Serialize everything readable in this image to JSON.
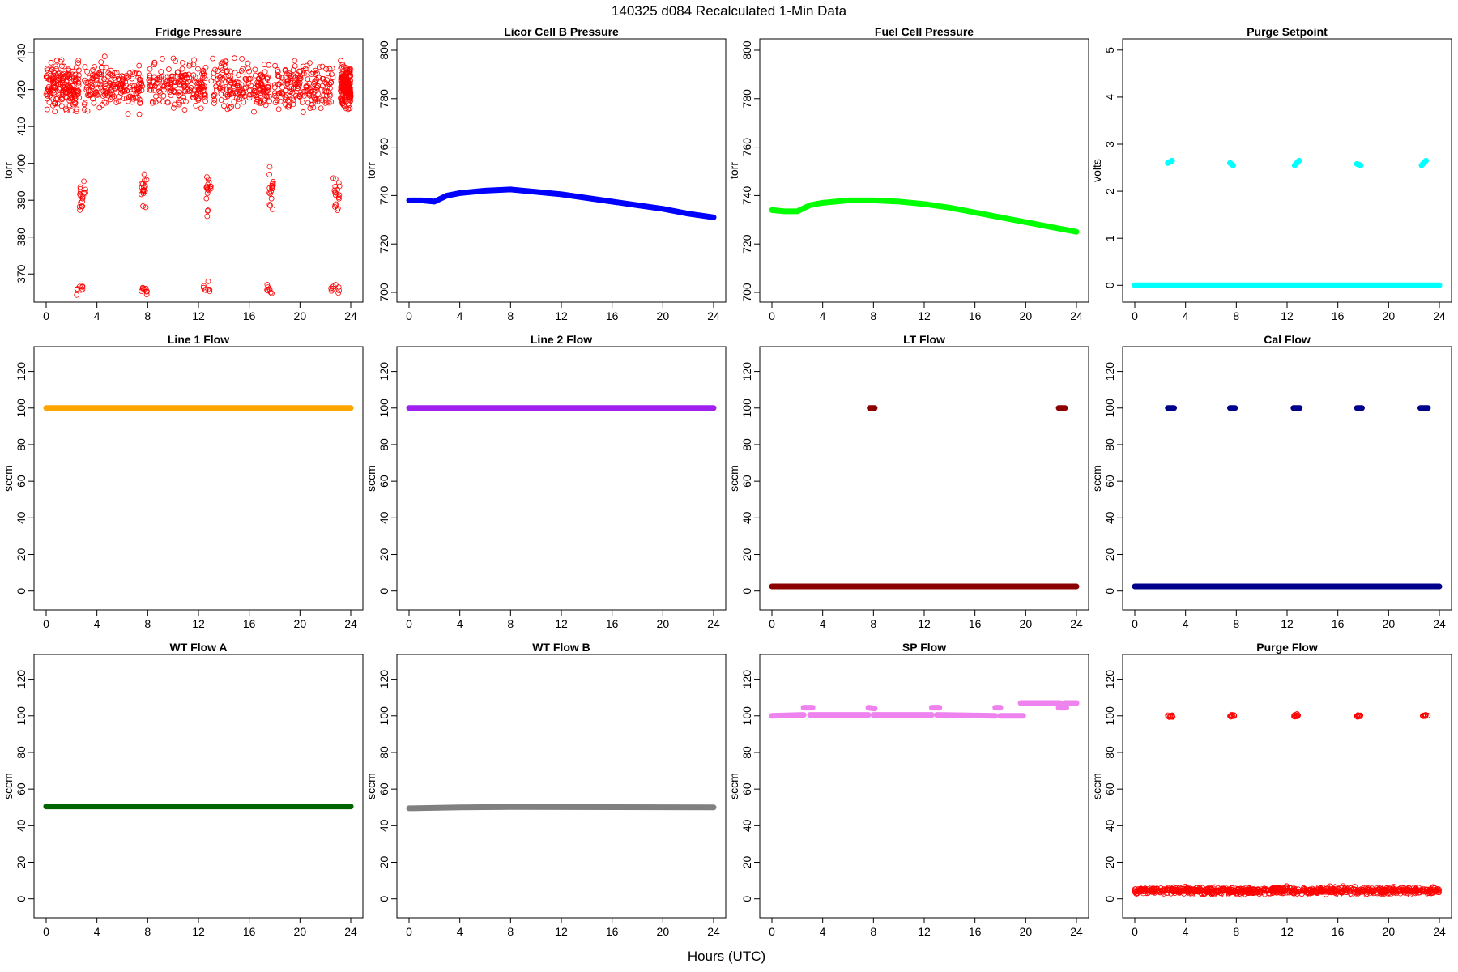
{
  "figure": {
    "title": "140325   d084   Recalculated 1-Min Data",
    "xlabel": "Hours (UTC)"
  },
  "chart_data": [
    {
      "type": "scatter",
      "title": "Fridge Pressure",
      "ylabel": "torr",
      "color": "#ff0000",
      "marker": "open-circle",
      "xlim": [
        0,
        24
      ],
      "ylim": [
        365,
        432
      ],
      "xticks": [
        0,
        4,
        8,
        12,
        16,
        20,
        24
      ],
      "yticks": [
        370,
        380,
        390,
        400,
        410,
        420,
        430
      ],
      "series": [
        {
          "kind": "noise",
          "x_ranges": [
            [
              0,
              2.6
            ],
            [
              3.0,
              7.6
            ],
            [
              8.1,
              12.6
            ],
            [
              13.0,
              17.6
            ],
            [
              18.0,
              22.6
            ],
            [
              23.2,
              24
            ]
          ],
          "center": 421,
          "spread": 5,
          "count": 1100
        },
        {
          "kind": "cluster",
          "x_ranges": [
            [
              2.6,
              3.1
            ],
            [
              7.5,
              8.0
            ],
            [
              12.6,
              13.0
            ],
            [
              17.5,
              17.9
            ],
            [
              22.6,
              23.2
            ]
          ],
          "center": 392,
          "spread": 4,
          "count": 90
        },
        {
          "kind": "cluster",
          "x_ranges": [
            [
              2.4,
              2.9
            ],
            [
              7.5,
              8.0
            ],
            [
              12.4,
              12.9
            ],
            [
              17.4,
              17.8
            ],
            [
              22.4,
              23.1
            ]
          ],
          "center": 366,
          "spread": 1.2,
          "count": 40
        }
      ]
    },
    {
      "type": "line",
      "title": "Licor Cell B Pressure",
      "ylabel": "torr",
      "color": "#0000ff",
      "marker": "thick-line",
      "xlim": [
        0,
        24
      ],
      "ylim": [
        700,
        802
      ],
      "xticks": [
        0,
        4,
        8,
        12,
        16,
        20,
        24
      ],
      "yticks": [
        700,
        720,
        740,
        760,
        780,
        800
      ],
      "series": [
        {
          "kind": "line",
          "x": [
            0,
            1,
            2,
            3,
            4,
            6,
            8,
            10,
            12,
            14,
            16,
            18,
            20,
            22,
            24
          ],
          "y": [
            738,
            738,
            737.5,
            740,
            741,
            742,
            742.5,
            741.5,
            740.5,
            739,
            737.5,
            736,
            734.5,
            732.5,
            731
          ]
        }
      ]
    },
    {
      "type": "line",
      "title": "Fuel Cell Pressure",
      "ylabel": "torr",
      "color": "#00ff00",
      "marker": "thick-line",
      "xlim": [
        0,
        24
      ],
      "ylim": [
        700,
        802
      ],
      "xticks": [
        0,
        4,
        8,
        12,
        16,
        20,
        24
      ],
      "yticks": [
        700,
        720,
        740,
        760,
        780,
        800
      ],
      "series": [
        {
          "kind": "line",
          "x": [
            0,
            1,
            2,
            3,
            4,
            6,
            8,
            10,
            12,
            14,
            16,
            18,
            20,
            22,
            24
          ],
          "y": [
            734,
            733.5,
            733.5,
            736,
            737,
            738,
            738,
            737.5,
            736.5,
            735,
            733,
            731,
            729,
            727,
            725
          ]
        }
      ]
    },
    {
      "type": "scatter",
      "title": "Purge Setpoint",
      "ylabel": "volts",
      "color": "#00ffff",
      "marker": "thick-line",
      "xlim": [
        0,
        24
      ],
      "ylim": [
        -0.15,
        5.1
      ],
      "xticks": [
        0,
        4,
        8,
        12,
        16,
        20,
        24
      ],
      "yticks": [
        0,
        1,
        2,
        3,
        4,
        5
      ],
      "series": [
        {
          "kind": "line",
          "x": [
            0,
            24
          ],
          "y": [
            0,
            0
          ]
        },
        {
          "kind": "segments",
          "segments": [
            [
              2.6,
              2.6,
              2.95,
              2.65
            ],
            [
              7.5,
              2.6,
              7.75,
              2.55
            ],
            [
              12.6,
              2.55,
              12.95,
              2.65
            ],
            [
              17.5,
              2.58,
              17.8,
              2.55
            ],
            [
              22.6,
              2.55,
              22.95,
              2.65
            ]
          ]
        }
      ]
    },
    {
      "type": "line",
      "title": "Line 1 Flow",
      "ylabel": "sccm",
      "color": "#ffa500",
      "marker": "thick-line",
      "xlim": [
        0,
        24
      ],
      "ylim": [
        -5,
        130
      ],
      "xticks": [
        0,
        4,
        8,
        12,
        16,
        20,
        24
      ],
      "yticks": [
        0,
        20,
        40,
        60,
        80,
        100,
        120
      ],
      "series": [
        {
          "kind": "line",
          "x": [
            0,
            24
          ],
          "y": [
            100,
            100
          ]
        }
      ]
    },
    {
      "type": "line",
      "title": "Line 2 Flow",
      "ylabel": "sccm",
      "color": "#a020f0",
      "marker": "thick-line",
      "xlim": [
        0,
        24
      ],
      "ylim": [
        -5,
        130
      ],
      "xticks": [
        0,
        4,
        8,
        12,
        16,
        20,
        24
      ],
      "yticks": [
        0,
        20,
        40,
        60,
        80,
        100,
        120
      ],
      "series": [
        {
          "kind": "line",
          "x": [
            0,
            24
          ],
          "y": [
            100,
            100
          ]
        }
      ]
    },
    {
      "type": "scatter",
      "title": "LT Flow",
      "ylabel": "sccm",
      "color": "#8b0000",
      "marker": "thick-line",
      "xlim": [
        0,
        24
      ],
      "ylim": [
        -5,
        130
      ],
      "xticks": [
        0,
        4,
        8,
        12,
        16,
        20,
        24
      ],
      "yticks": [
        0,
        20,
        40,
        60,
        80,
        100,
        120
      ],
      "series": [
        {
          "kind": "line",
          "x": [
            0,
            24
          ],
          "y": [
            2.5,
            2.5
          ]
        },
        {
          "kind": "segments",
          "segments": [
            [
              7.7,
              100,
              8.1,
              100
            ],
            [
              22.6,
              100,
              23.1,
              100
            ]
          ]
        }
      ]
    },
    {
      "type": "scatter",
      "title": "Cal Flow",
      "ylabel": "sccm",
      "color": "#00008b",
      "marker": "thick-line",
      "xlim": [
        0,
        24
      ],
      "ylim": [
        -5,
        130
      ],
      "xticks": [
        0,
        4,
        8,
        12,
        16,
        20,
        24
      ],
      "yticks": [
        0,
        20,
        40,
        60,
        80,
        100,
        120
      ],
      "series": [
        {
          "kind": "line",
          "x": [
            0,
            24
          ],
          "y": [
            2.5,
            2.5
          ]
        },
        {
          "kind": "segments",
          "segments": [
            [
              2.6,
              100,
              3.1,
              100
            ],
            [
              7.5,
              100,
              7.9,
              100
            ],
            [
              12.5,
              100,
              13.0,
              100
            ],
            [
              17.5,
              100,
              17.9,
              100
            ],
            [
              22.5,
              100,
              23.1,
              100
            ]
          ]
        }
      ]
    },
    {
      "type": "line",
      "title": "WT Flow A",
      "ylabel": "sccm",
      "color": "#006400",
      "marker": "thick-line",
      "xlim": [
        0,
        24
      ],
      "ylim": [
        -5,
        130
      ],
      "xticks": [
        0,
        4,
        8,
        12,
        16,
        20,
        24
      ],
      "yticks": [
        0,
        20,
        40,
        60,
        80,
        100,
        120
      ],
      "series": [
        {
          "kind": "line",
          "x": [
            0,
            24
          ],
          "y": [
            50.5,
            50.5
          ]
        }
      ]
    },
    {
      "type": "line",
      "title": "WT Flow B",
      "ylabel": "sccm",
      "color": "#808080",
      "marker": "thick-line",
      "xlim": [
        0,
        24
      ],
      "ylim": [
        -5,
        130
      ],
      "xticks": [
        0,
        4,
        8,
        12,
        16,
        20,
        24
      ],
      "yticks": [
        0,
        20,
        40,
        60,
        80,
        100,
        120
      ],
      "series": [
        {
          "kind": "line",
          "x": [
            0,
            4,
            8,
            24
          ],
          "y": [
            49.5,
            50,
            50.2,
            50
          ]
        }
      ]
    },
    {
      "type": "scatter",
      "title": "SP Flow",
      "ylabel": "sccm",
      "color": "#ee82ee",
      "marker": "thick-line",
      "xlim": [
        0,
        24
      ],
      "ylim": [
        -5,
        130
      ],
      "xticks": [
        0,
        4,
        8,
        12,
        16,
        20,
        24
      ],
      "yticks": [
        0,
        20,
        40,
        60,
        80,
        100,
        120
      ],
      "series": [
        {
          "kind": "segments",
          "segments": [
            [
              0,
              100,
              2.5,
              100.5
            ],
            [
              2.5,
              104.5,
              3.2,
              104.5
            ],
            [
              3.0,
              100.5,
              7.6,
              100.5
            ],
            [
              7.6,
              104.5,
              8.1,
              104
            ],
            [
              8.0,
              100.5,
              12.6,
              100.5
            ],
            [
              12.6,
              104.5,
              13.2,
              104.5
            ],
            [
              13.0,
              100.5,
              17.6,
              100
            ],
            [
              17.6,
              104.5,
              18.0,
              104.5
            ],
            [
              18.0,
              100,
              19.8,
              100
            ],
            [
              19.6,
              107,
              22.7,
              107
            ],
            [
              22.6,
              104.5,
              23.2,
              104.5
            ],
            [
              23.1,
              107,
              24,
              107
            ]
          ]
        }
      ]
    },
    {
      "type": "scatter",
      "title": "Purge Flow",
      "ylabel": "sccm",
      "color": "#ff0000",
      "marker": "open-circle",
      "xlim": [
        0,
        24
      ],
      "ylim": [
        -5,
        130
      ],
      "xticks": [
        0,
        4,
        8,
        12,
        16,
        20,
        24
      ],
      "yticks": [
        0,
        20,
        40,
        60,
        80,
        100,
        120
      ],
      "series": [
        {
          "kind": "noise",
          "x_ranges": [
            [
              0,
              24
            ]
          ],
          "center": 4.5,
          "spread": 1.5,
          "count": 900
        },
        {
          "kind": "cluster",
          "x_ranges": [
            [
              2.6,
              3.0
            ],
            [
              7.5,
              7.9
            ],
            [
              12.5,
              12.9
            ],
            [
              17.5,
              17.8
            ],
            [
              22.6,
              23.1
            ]
          ],
          "center": 100,
          "spread": 0.6,
          "count": 60
        }
      ]
    }
  ]
}
